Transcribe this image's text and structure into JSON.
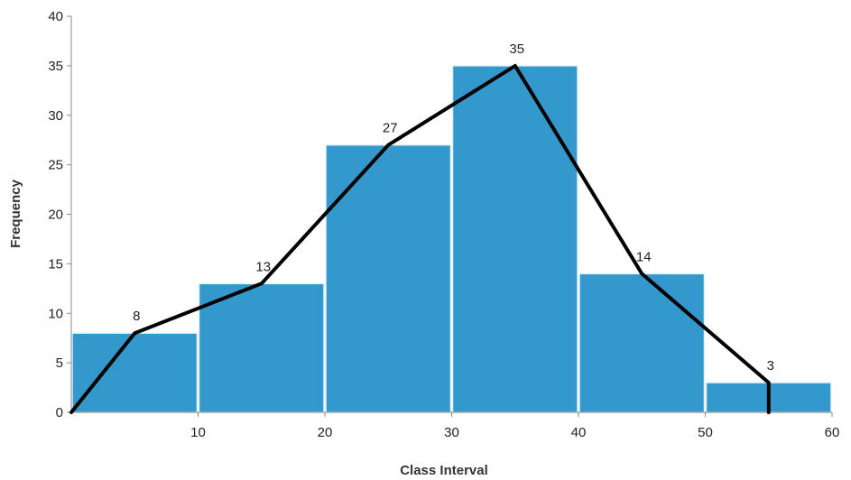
{
  "chart_data": {
    "type": "bar",
    "subtype": "histogram with frequency polygon",
    "title": "",
    "xlabel": "Class Interval",
    "ylabel": "Frequency",
    "xlim": [
      0,
      60
    ],
    "ylim": [
      0,
      40
    ],
    "x_ticks": [
      10,
      20,
      30,
      40,
      50,
      60
    ],
    "y_ticks": [
      0,
      5,
      10,
      15,
      20,
      25,
      30,
      35,
      40
    ],
    "grid": false,
    "legend": "none",
    "bins": [
      {
        "from": 0,
        "to": 10,
        "value": 8
      },
      {
        "from": 10,
        "to": 20,
        "value": 13
      },
      {
        "from": 20,
        "to": 30,
        "value": 27
      },
      {
        "from": 30,
        "to": 40,
        "value": 35
      },
      {
        "from": 40,
        "to": 50,
        "value": 14
      },
      {
        "from": 50,
        "to": 60,
        "value": 3
      }
    ],
    "data_labels": [
      "8",
      "13",
      "27",
      "35",
      "14",
      "3"
    ],
    "polygon": {
      "x": [
        0,
        5,
        15,
        25,
        35,
        45,
        55,
        55
      ],
      "y": [
        0,
        8,
        13,
        27,
        35,
        14,
        3,
        0
      ]
    },
    "colors": {
      "bar_fill": "#3399cc",
      "bar_stroke": "#ffffff",
      "polygon": "#000000",
      "axis": "#888888"
    }
  }
}
